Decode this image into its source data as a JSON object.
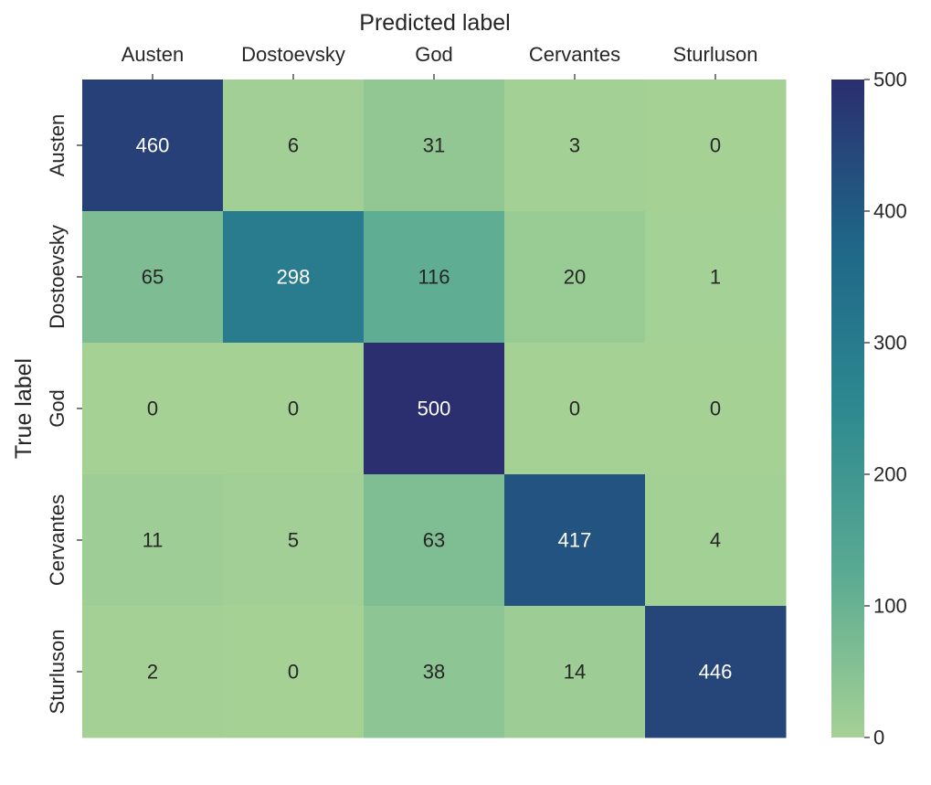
{
  "chart_data": {
    "type": "heatmap",
    "title": "",
    "xlabel": "Predicted label",
    "ylabel": "True label",
    "x_categories": [
      "Austen",
      "Dostoevsky",
      "God",
      "Cervantes",
      "Sturluson"
    ],
    "y_categories": [
      "Austen",
      "Dostoevsky",
      "God",
      "Cervantes",
      "Sturluson"
    ],
    "values": [
      [
        460,
        6,
        31,
        3,
        0
      ],
      [
        65,
        298,
        116,
        20,
        1
      ],
      [
        0,
        0,
        500,
        0,
        0
      ],
      [
        11,
        5,
        63,
        417,
        4
      ],
      [
        2,
        0,
        38,
        14,
        446
      ]
    ],
    "x_axis_position": "top",
    "grid": false,
    "colormap": "crest",
    "colorbar": {
      "range": [
        0,
        500
      ],
      "ticks": [
        0,
        100,
        200,
        300,
        400,
        500
      ],
      "position": "right"
    },
    "colors": {
      "low": "#a5d195",
      "mid_low": "#5aaa92",
      "mid": "#2d8990",
      "mid_high": "#1f6688",
      "high": "#2b2e6f"
    }
  }
}
